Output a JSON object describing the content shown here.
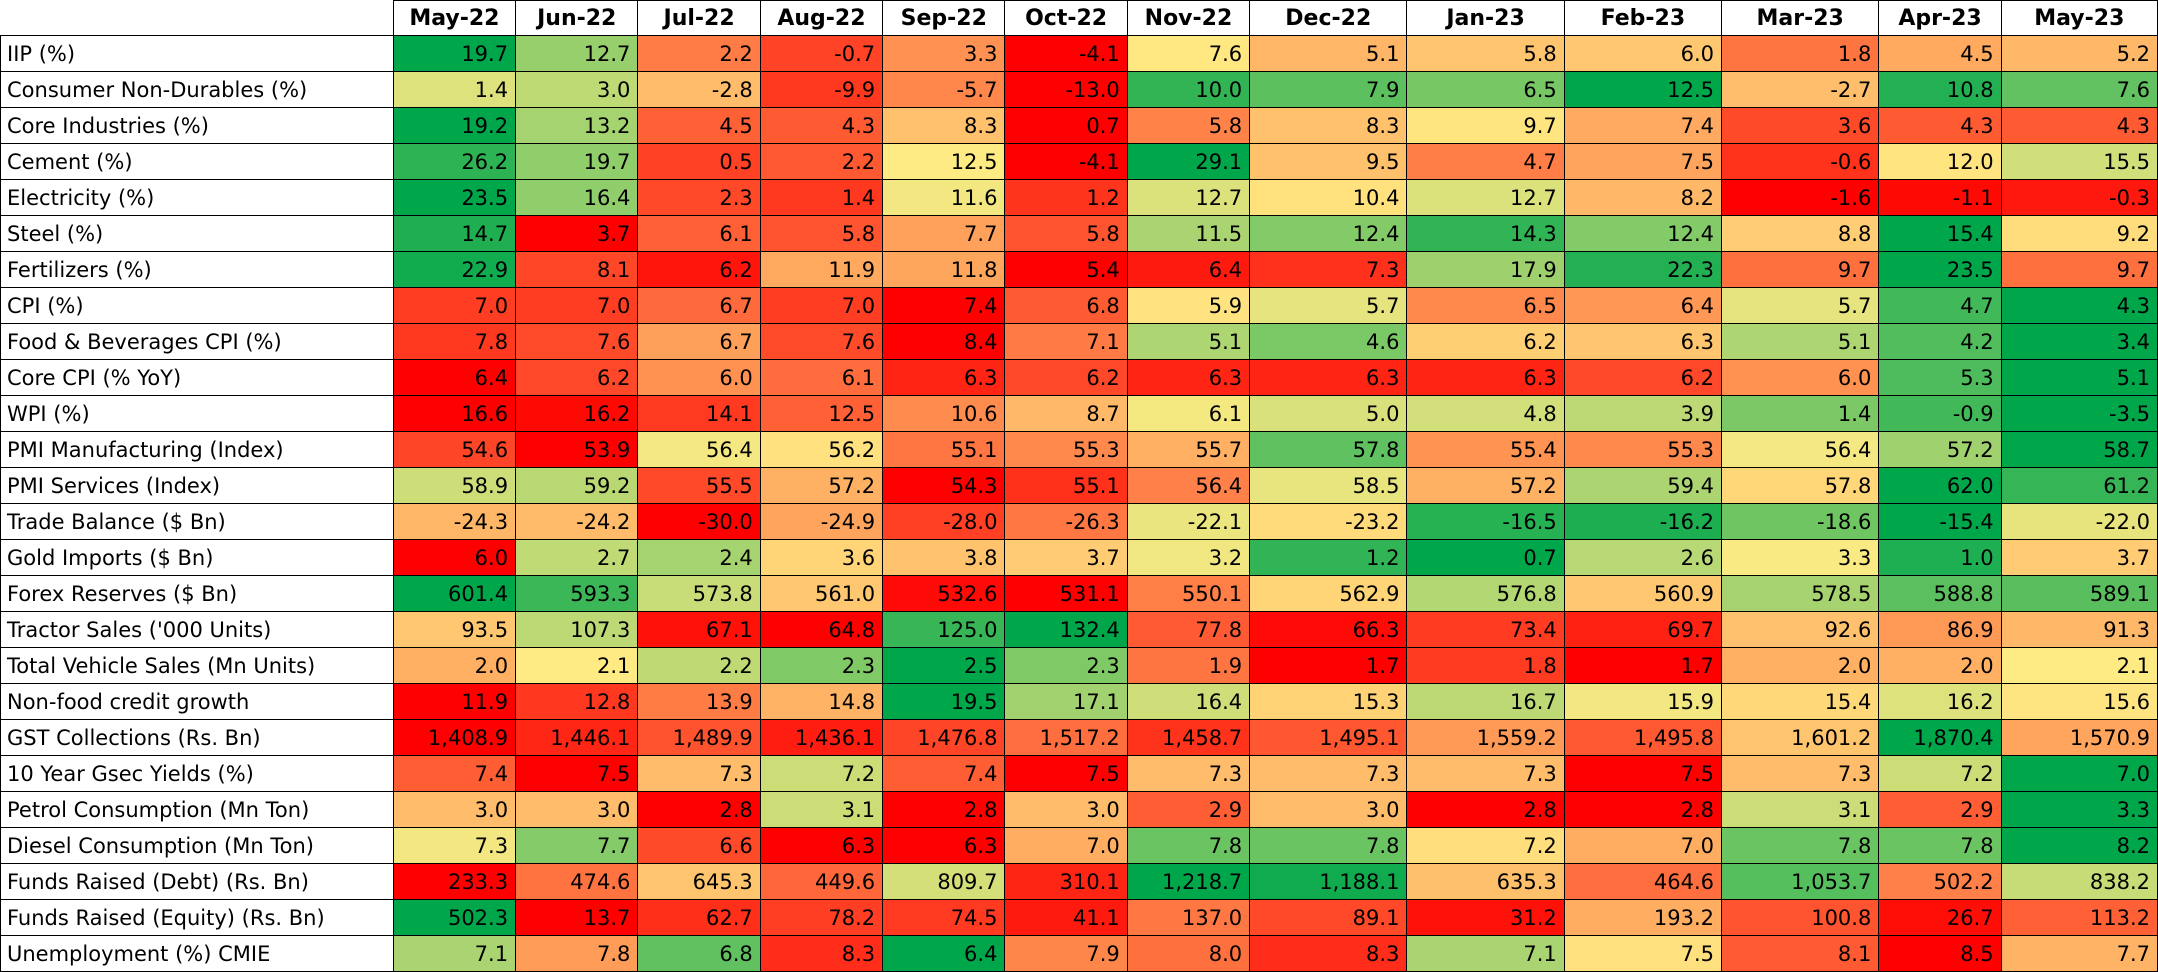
{
  "chart_data": {
    "type": "heatmap",
    "title": "",
    "colors": {
      "low": "#ff0000",
      "mid": "#ffeb84",
      "high": "#00a74a"
    },
    "color_rule": "per-row 3-color scale; green = favourable, red = unfavourable",
    "columns": [
      "May-22",
      "Jun-22",
      "Jul-22",
      "Aug-22",
      "Sep-22",
      "Oct-22",
      "Nov-22",
      "Dec-22",
      "Jan-23",
      "Feb-23",
      "Mar-23",
      "Apr-23",
      "May-23"
    ],
    "rows": [
      {
        "label": " IIP (%)",
        "values": [
          19.7,
          12.7,
          2.2,
          -0.7,
          3.3,
          -4.1,
          7.6,
          5.1,
          5.8,
          6.0,
          1.8,
          4.5,
          5.2
        ],
        "display": [
          "19.7",
          "12.7",
          "2.2",
          "-0.7",
          "3.3",
          "-4.1",
          "7.6",
          "5.1",
          "5.8",
          "6.0",
          "1.8",
          "4.5",
          "5.2"
        ],
        "higher_is_better": true
      },
      {
        "label": "Consumer Non-Durables (%)",
        "values": [
          1.4,
          3.0,
          -2.8,
          -9.9,
          -5.7,
          -13.0,
          10.0,
          7.9,
          6.5,
          12.5,
          -2.7,
          10.8,
          7.6
        ],
        "display": [
          "1.4",
          "3.0",
          "-2.8",
          "-9.9",
          "-5.7",
          "-13.0",
          "10.0",
          "7.9",
          "6.5",
          "12.5",
          "-2.7",
          "10.8",
          "7.6"
        ],
        "higher_is_better": true
      },
      {
        "label": "Core Industries (%)",
        "values": [
          19.2,
          13.2,
          4.5,
          4.3,
          8.3,
          0.7,
          5.8,
          8.3,
          9.7,
          7.4,
          3.6,
          4.3,
          4.3
        ],
        "display": [
          "19.2",
          "13.2",
          "4.5",
          "4.3",
          "8.3",
          "0.7",
          "5.8",
          "8.3",
          "9.7",
          "7.4",
          "3.6",
          "4.3",
          "4.3"
        ],
        "higher_is_better": true
      },
      {
        "label": "Cement (%)",
        "values": [
          26.2,
          19.7,
          0.5,
          2.2,
          12.5,
          -4.1,
          29.1,
          9.5,
          4.7,
          7.5,
          -0.6,
          12.0,
          15.5
        ],
        "display": [
          "26.2",
          "19.7",
          "0.5",
          "2.2",
          "12.5",
          "-4.1",
          "29.1",
          "9.5",
          "4.7",
          "7.5",
          "-0.6",
          "12.0",
          "15.5"
        ],
        "higher_is_better": true
      },
      {
        "label": "Electricity (%)",
        "values": [
          23.5,
          16.4,
          2.3,
          1.4,
          11.6,
          1.2,
          12.7,
          10.4,
          12.7,
          8.2,
          -1.6,
          -1.1,
          -0.3
        ],
        "display": [
          "23.5",
          "16.4",
          "2.3",
          "1.4",
          "11.6",
          "1.2",
          "12.7",
          "10.4",
          "12.7",
          "8.2",
          "-1.6",
          "-1.1",
          "-0.3"
        ],
        "higher_is_better": true
      },
      {
        "label": "Steel (%)",
        "values": [
          14.7,
          3.7,
          6.1,
          5.8,
          7.7,
          5.8,
          11.5,
          12.4,
          14.3,
          12.4,
          8.8,
          15.4,
          9.2
        ],
        "display": [
          "14.7",
          "3.7",
          "6.1",
          "5.8",
          "7.7",
          "5.8",
          "11.5",
          "12.4",
          "14.3",
          "12.4",
          "8.8",
          "15.4",
          "9.2"
        ],
        "higher_is_better": true
      },
      {
        "label": "Fertilizers (%)",
        "values": [
          22.9,
          8.1,
          6.2,
          11.9,
          11.8,
          5.4,
          6.4,
          7.3,
          17.9,
          22.3,
          9.7,
          23.5,
          9.7
        ],
        "display": [
          "22.9",
          "8.1",
          "6.2",
          "11.9",
          "11.8",
          "5.4",
          "6.4",
          "7.3",
          "17.9",
          "22.3",
          "9.7",
          "23.5",
          "9.7"
        ],
        "higher_is_better": true
      },
      {
        "label": "CPI (%)",
        "values": [
          7.0,
          7.0,
          6.7,
          7.0,
          7.4,
          6.8,
          5.9,
          5.7,
          6.5,
          6.4,
          5.7,
          4.7,
          4.3
        ],
        "display": [
          "7.0",
          "7.0",
          "6.7",
          "7.0",
          "7.4",
          "6.8",
          "5.9",
          "5.7",
          "6.5",
          "6.4",
          "5.7",
          "4.7",
          "4.3"
        ],
        "higher_is_better": false
      },
      {
        "label": "Food & Beverages CPI (%)",
        "values": [
          7.8,
          7.6,
          6.7,
          7.6,
          8.4,
          7.1,
          5.1,
          4.6,
          6.2,
          6.3,
          5.1,
          4.2,
          3.4
        ],
        "display": [
          "7.8",
          "7.6",
          "6.7",
          "7.6",
          "8.4",
          "7.1",
          "5.1",
          "4.6",
          "6.2",
          "6.3",
          "5.1",
          "4.2",
          "3.4"
        ],
        "higher_is_better": false
      },
      {
        "label": "Core CPI (% YoY)",
        "values": [
          6.4,
          6.2,
          6.0,
          6.1,
          6.3,
          6.2,
          6.3,
          6.3,
          6.3,
          6.2,
          6.0,
          5.3,
          5.1
        ],
        "display": [
          "6.4",
          "6.2",
          "6.0",
          "6.1",
          "6.3",
          "6.2",
          "6.3",
          "6.3",
          "6.3",
          "6.2",
          "6.0",
          "5.3",
          "5.1"
        ],
        "higher_is_better": false
      },
      {
        "label": "WPI (%)",
        "values": [
          16.6,
          16.2,
          14.1,
          12.5,
          10.6,
          8.7,
          6.1,
          5.0,
          4.8,
          3.9,
          1.4,
          -0.9,
          -3.5
        ],
        "display": [
          "16.6",
          "16.2",
          "14.1",
          "12.5",
          "10.6",
          "8.7",
          "6.1",
          "5.0",
          "4.8",
          "3.9",
          "1.4",
          "-0.9",
          "-3.5"
        ],
        "higher_is_better": false
      },
      {
        "label": "PMI Manufacturing (Index)",
        "values": [
          54.6,
          53.9,
          56.4,
          56.2,
          55.1,
          55.3,
          55.7,
          57.8,
          55.4,
          55.3,
          56.4,
          57.2,
          58.7
        ],
        "display": [
          "54.6",
          "53.9",
          "56.4",
          "56.2",
          "55.1",
          "55.3",
          "55.7",
          "57.8",
          "55.4",
          "55.3",
          "56.4",
          "57.2",
          "58.7"
        ],
        "higher_is_better": true
      },
      {
        "label": "PMI Services (Index)",
        "values": [
          58.9,
          59.2,
          55.5,
          57.2,
          54.3,
          55.1,
          56.4,
          58.5,
          57.2,
          59.4,
          57.8,
          62.0,
          61.2
        ],
        "display": [
          "58.9",
          "59.2",
          "55.5",
          "57.2",
          "54.3",
          "55.1",
          "56.4",
          "58.5",
          "57.2",
          "59.4",
          "57.8",
          "62.0",
          "61.2"
        ],
        "higher_is_better": true
      },
      {
        "label": "Trade Balance ($ Bn)",
        "values": [
          -24.3,
          -24.2,
          -30.0,
          -24.9,
          -28.0,
          -26.3,
          -22.1,
          -23.2,
          -16.5,
          -16.2,
          -18.6,
          -15.4,
          -22.0
        ],
        "display": [
          "-24.3",
          "-24.2",
          "-30.0",
          "-24.9",
          "-28.0",
          "-26.3",
          "-22.1",
          "-23.2",
          "-16.5",
          "-16.2",
          "-18.6",
          "-15.4",
          "-22.0"
        ],
        "higher_is_better": true
      },
      {
        "label": "Gold Imports ($ Bn)",
        "values": [
          6.0,
          2.7,
          2.4,
          3.6,
          3.8,
          3.7,
          3.2,
          1.2,
          0.7,
          2.6,
          3.3,
          1.0,
          3.7
        ],
        "display": [
          "6.0",
          "2.7",
          "2.4",
          "3.6",
          "3.8",
          "3.7",
          "3.2",
          "1.2",
          "0.7",
          "2.6",
          "3.3",
          "1.0",
          "3.7"
        ],
        "higher_is_better": false
      },
      {
        "label": "Forex Reserves ($ Bn)",
        "values": [
          601.4,
          593.3,
          573.8,
          561.0,
          532.6,
          531.1,
          550.1,
          562.9,
          576.8,
          560.9,
          578.5,
          588.8,
          589.1
        ],
        "display": [
          "601.4",
          "593.3",
          "573.8",
          "561.0",
          "532.6",
          "531.1",
          "550.1",
          "562.9",
          "576.8",
          "560.9",
          "578.5",
          "588.8",
          "589.1"
        ],
        "higher_is_better": true
      },
      {
        "label": "Tractor Sales ('000 Units)",
        "values": [
          93.5,
          107.3,
          67.1,
          64.8,
          125.0,
          132.4,
          77.8,
          66.3,
          73.4,
          69.7,
          92.6,
          86.9,
          91.3
        ],
        "display": [
          "93.5",
          "107.3",
          "67.1",
          "64.8",
          "125.0",
          "132.4",
          "77.8",
          "66.3",
          "73.4",
          "69.7",
          "92.6",
          "86.9",
          "91.3"
        ],
        "higher_is_better": true
      },
      {
        "label": "Total Vehicle Sales (Mn Units)",
        "values": [
          2.0,
          2.1,
          2.2,
          2.3,
          2.5,
          2.3,
          1.9,
          1.7,
          1.8,
          1.7,
          2.0,
          2.0,
          2.1
        ],
        "display": [
          "2.0",
          "2.1",
          "2.2",
          "2.3",
          "2.5",
          "2.3",
          "1.9",
          "1.7",
          "1.8",
          "1.7",
          "2.0",
          "2.0",
          "2.1"
        ],
        "higher_is_better": true
      },
      {
        "label": "Non-food credit growth",
        "values": [
          11.9,
          12.8,
          13.9,
          14.8,
          19.5,
          17.1,
          16.4,
          15.3,
          16.7,
          15.9,
          15.4,
          16.2,
          15.6
        ],
        "display": [
          "11.9",
          "12.8",
          "13.9",
          "14.8",
          "19.5",
          "17.1",
          "16.4",
          "15.3",
          "16.7",
          "15.9",
          "15.4",
          "16.2",
          "15.6"
        ],
        "higher_is_better": true
      },
      {
        "label": "GST Collections (Rs. Bn)",
        "values": [
          1408.9,
          1446.1,
          1489.9,
          1436.1,
          1476.8,
          1517.2,
          1458.7,
          1495.1,
          1559.2,
          1495.8,
          1601.2,
          1870.4,
          1570.9
        ],
        "display": [
          "1,408.9",
          "1,446.1",
          "1,489.9",
          "1,436.1",
          "1,476.8",
          "1,517.2",
          "1,458.7",
          "1,495.1",
          "1,559.2",
          "1,495.8",
          "1,601.2",
          "1,870.4",
          "1,570.9"
        ],
        "higher_is_better": true
      },
      {
        "label": "10 Year Gsec Yields (%)",
        "values": [
          7.4,
          7.5,
          7.3,
          7.2,
          7.4,
          7.5,
          7.3,
          7.3,
          7.3,
          7.5,
          7.3,
          7.2,
          7.0
        ],
        "display": [
          "7.4",
          "7.5",
          "7.3",
          "7.2",
          "7.4",
          "7.5",
          "7.3",
          "7.3",
          "7.3",
          "7.5",
          "7.3",
          "7.2",
          "7.0"
        ],
        "higher_is_better": false
      },
      {
        "label": "Petrol Consumption (Mn Ton)",
        "values": [
          3.0,
          3.0,
          2.8,
          3.1,
          2.8,
          3.0,
          2.9,
          3.0,
          2.8,
          2.8,
          3.1,
          2.9,
          3.3
        ],
        "display": [
          "3.0",
          "3.0",
          "2.8",
          "3.1",
          "2.8",
          "3.0",
          "2.9",
          "3.0",
          "2.8",
          "2.8",
          "3.1",
          "2.9",
          "3.3"
        ],
        "higher_is_better": true
      },
      {
        "label": "Diesel Consumption (Mn Ton)",
        "values": [
          7.3,
          7.7,
          6.6,
          6.3,
          6.3,
          7.0,
          7.8,
          7.8,
          7.2,
          7.0,
          7.8,
          7.8,
          8.2
        ],
        "display": [
          "7.3",
          "7.7",
          "6.6",
          "6.3",
          "6.3",
          "7.0",
          "7.8",
          "7.8",
          "7.2",
          "7.0",
          "7.8",
          "7.8",
          "8.2"
        ],
        "higher_is_better": true
      },
      {
        "label": "Funds Raised (Debt) (Rs. Bn)",
        "values": [
          233.3,
          474.6,
          645.3,
          449.6,
          809.7,
          310.1,
          1218.7,
          1188.1,
          635.3,
          464.6,
          1053.7,
          502.2,
          838.2
        ],
        "display": [
          "233.3",
          "474.6",
          "645.3",
          "449.6",
          "809.7",
          "310.1",
          "1,218.7",
          "1,188.1",
          "635.3",
          "464.6",
          "1,053.7",
          "502.2",
          "838.2"
        ],
        "higher_is_better": true
      },
      {
        "label": "Funds Raised (Equity) (Rs. Bn)",
        "values": [
          502.3,
          13.7,
          62.7,
          78.2,
          74.5,
          41.1,
          137.0,
          89.1,
          31.2,
          193.2,
          100.8,
          26.7,
          113.2
        ],
        "display": [
          "502.3",
          "13.7",
          "62.7",
          "78.2",
          "74.5",
          "41.1",
          "137.0",
          "89.1",
          "31.2",
          "193.2",
          "100.8",
          "26.7",
          "113.2"
        ],
        "higher_is_better": true
      },
      {
        "label": "Unemployment (%) CMIE",
        "values": [
          7.1,
          7.8,
          6.8,
          8.3,
          6.4,
          7.9,
          8.0,
          8.3,
          7.1,
          7.5,
          8.1,
          8.5,
          7.7
        ],
        "display": [
          "7.1",
          "7.8",
          "6.8",
          "8.3",
          "6.4",
          "7.9",
          "8.0",
          "8.3",
          "7.1",
          "7.5",
          "8.1",
          "8.5",
          "7.7"
        ],
        "higher_is_better": false
      }
    ]
  }
}
